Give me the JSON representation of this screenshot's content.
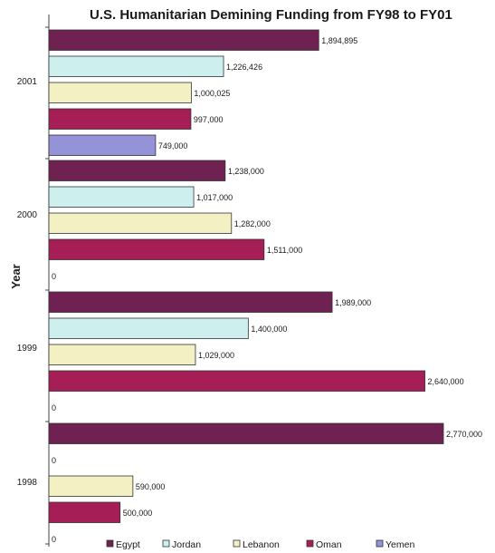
{
  "chart_data": {
    "type": "bar",
    "orientation": "horizontal",
    "title": "U.S. Humanitarian Demining Funding from FY98 to FY01",
    "ylabel": "Year",
    "xlabel": "",
    "categories": [
      "2001",
      "2000",
      "1999",
      "1998"
    ],
    "legend_position": "bottom",
    "grid": false,
    "series": [
      {
        "name": "Egypt",
        "color": "#6f2151",
        "values": [
          1894895,
          1238000,
          1989000,
          2770000
        ],
        "labels": [
          "1,894,895",
          "1,238,000",
          "1,989,000",
          "2,770,000"
        ]
      },
      {
        "name": "Jordan",
        "color": "#cdf0ef",
        "values": [
          1226426,
          1017000,
          1400000,
          0
        ],
        "labels": [
          "1,226,426",
          "1,017,000",
          "1,400,000",
          "0"
        ]
      },
      {
        "name": "Lebanon",
        "color": "#f3f0c4",
        "values": [
          1000025,
          1282000,
          1029000,
          590000
        ],
        "labels": [
          "1,000,025",
          "1,282,000",
          "1,029,000",
          "590,000"
        ]
      },
      {
        "name": "Oman",
        "color": "#a51e55",
        "values": [
          997000,
          1511000,
          2640000,
          500000
        ],
        "labels": [
          "997,000",
          "1,511,000",
          "2,640,000",
          "500,000"
        ]
      },
      {
        "name": "Yemen",
        "color": "#9593d8",
        "values": [
          749000,
          0,
          0,
          0
        ],
        "labels": [
          "749,000",
          "0",
          "0",
          "0"
        ]
      }
    ]
  }
}
